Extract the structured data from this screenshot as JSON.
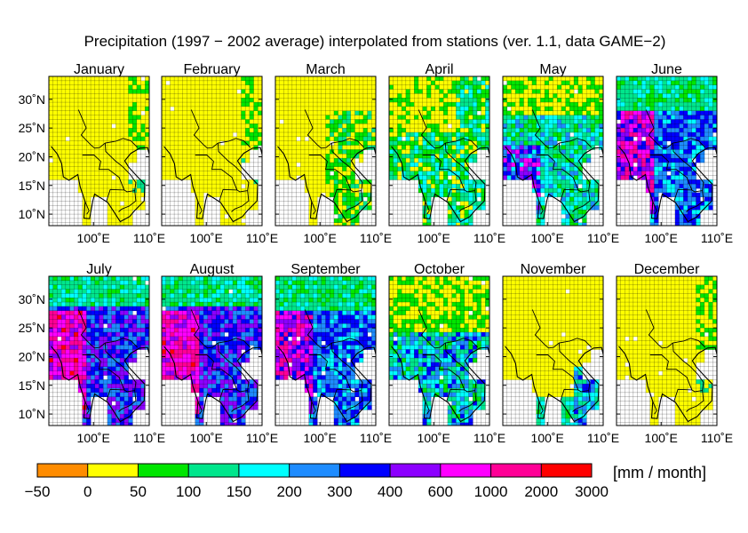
{
  "title": "Precipitation (1997 − 2002 average) interpolated from stations (ver. 1.1, data GAME−2)",
  "lat_labels": [
    "30˚N",
    "25˚N",
    "20˚N",
    "15˚N",
    "10˚N"
  ],
  "lon_labels": [
    "100˚E",
    "110˚E"
  ],
  "panels": [
    {
      "month": "January",
      "regime": "dry"
    },
    {
      "month": "February",
      "regime": "dry"
    },
    {
      "month": "March",
      "regime": "dry_east_wet"
    },
    {
      "month": "April",
      "regime": "pre_monsoon"
    },
    {
      "month": "May",
      "regime": "monsoon_onset"
    },
    {
      "month": "June",
      "regime": "monsoon"
    },
    {
      "month": "July",
      "regime": "monsoon_peak"
    },
    {
      "month": "August",
      "regime": "monsoon_peak"
    },
    {
      "month": "September",
      "regime": "monsoon"
    },
    {
      "month": "October",
      "regime": "retreat"
    },
    {
      "month": "November",
      "regime": "dry_coastal"
    },
    {
      "month": "December",
      "regime": "dry"
    }
  ],
  "colorbar": {
    "unit": "[mm / month]",
    "ticks": [
      "−50",
      "0",
      "50",
      "100",
      "150",
      "200",
      "300",
      "400",
      "600",
      "1000",
      "2000",
      "3000"
    ],
    "colors": [
      "#ff8c00",
      "#ffff00",
      "#00e600",
      "#00e68c",
      "#00ffff",
      "#1e8cff",
      "#0000ff",
      "#8c00ff",
      "#ff00ff",
      "#ff0096",
      "#ff0000"
    ]
  },
  "colors": {
    "missing": "#ffffff",
    "grid": "#000000",
    "coast": "#000000"
  }
}
